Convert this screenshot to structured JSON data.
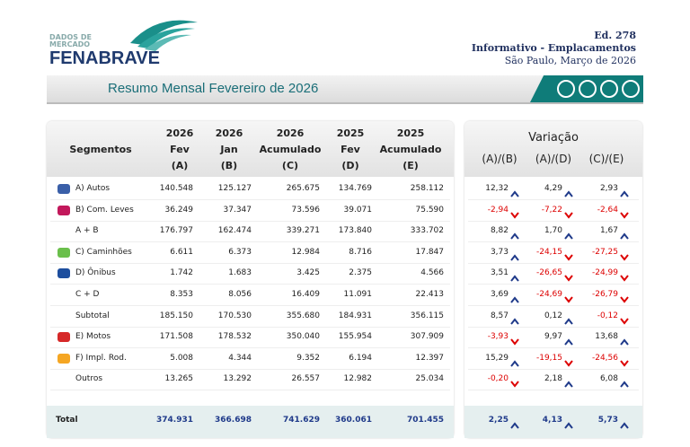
{
  "header": {
    "logo_top": "DADOS DE",
    "logo_mid": "MERCADO",
    "logo_name": "FENABRAVE",
    "edition": "Ed. 278",
    "subtitle": "Informativo - Emplacamentos",
    "place_date": "São Paulo, Março de 2026"
  },
  "banner": {
    "title": "Resumo Mensal Fevereiro de 2026"
  },
  "table": {
    "segment_header": "Segmentos",
    "columns": [
      [
        "2026",
        "Fev",
        "(A)"
      ],
      [
        "2026",
        "Jan",
        "(B)"
      ],
      [
        "2026",
        "Acumulado",
        "(C)"
      ],
      [
        "2025",
        "Fev",
        "(D)"
      ],
      [
        "2025",
        "Acumulado",
        "(E)"
      ]
    ],
    "variation_header": "Variação",
    "variation_columns": [
      "(A)/(B)",
      "(A)/(D)",
      "(C)/(E)"
    ],
    "rows": [
      {
        "label": "A) Autos",
        "values": [
          "140.548",
          "125.127",
          "265.675",
          "134.769",
          "258.112"
        ],
        "variation": [
          "12,32",
          "4,29",
          "2,93"
        ]
      },
      {
        "label": "B) Com. Leves",
        "values": [
          "36.249",
          "37.347",
          "73.596",
          "39.071",
          "75.590"
        ],
        "variation": [
          "-2,94",
          "-7,22",
          "-2,64"
        ]
      },
      {
        "label": "A + B",
        "values": [
          "176.797",
          "162.474",
          "339.271",
          "173.840",
          "333.702"
        ],
        "variation": [
          "8,82",
          "1,70",
          "1,67"
        ]
      },
      {
        "label": "C) Caminhões",
        "values": [
          "6.611",
          "6.373",
          "12.984",
          "8.716",
          "17.847"
        ],
        "variation": [
          "3,73",
          "-24,15",
          "-27,25"
        ]
      },
      {
        "label": "D) Ônibus",
        "values": [
          "1.742",
          "1.683",
          "3.425",
          "2.375",
          "4.566"
        ],
        "variation": [
          "3,51",
          "-26,65",
          "-24,99"
        ]
      },
      {
        "label": "C + D",
        "values": [
          "8.353",
          "8.056",
          "16.409",
          "11.091",
          "22.413"
        ],
        "variation": [
          "3,69",
          "-24,69",
          "-26,79"
        ]
      },
      {
        "label": "Subtotal",
        "values": [
          "185.150",
          "170.530",
          "355.680",
          "184.931",
          "356.115"
        ],
        "variation": [
          "8,57",
          "0,12",
          "-0,12"
        ]
      },
      {
        "label": "E) Motos",
        "values": [
          "171.508",
          "178.532",
          "350.040",
          "155.954",
          "307.909"
        ],
        "variation": [
          "-3,93",
          "9,97",
          "13,68"
        ]
      },
      {
        "label": "F) Impl. Rod.",
        "values": [
          "5.008",
          "4.344",
          "9.352",
          "6.194",
          "12.397"
        ],
        "variation": [
          "15,29",
          "-19,15",
          "-24,56"
        ]
      },
      {
        "label": "Outros",
        "values": [
          "13.265",
          "13.292",
          "26.557",
          "12.982",
          "25.034"
        ],
        "variation": [
          "-0,20",
          "2,18",
          "6,08"
        ]
      }
    ],
    "total": {
      "label": "Total",
      "values": [
        "374.931",
        "366.698",
        "741.629",
        "360.061",
        "701.455"
      ],
      "variation": [
        "2,25",
        "4,13",
        "5,73"
      ]
    }
  }
}
